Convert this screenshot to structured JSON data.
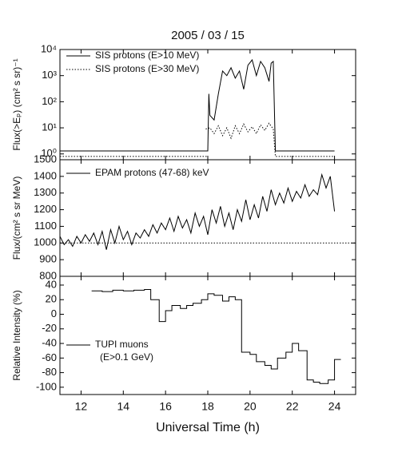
{
  "chart_data": [
    {
      "type": "line",
      "title": "2005 / 03 / 15",
      "ylabel": "Flux(>Eₚ) (cm² s sr)⁻¹",
      "log_scale": true,
      "xlim": [
        11,
        25
      ],
      "xticks": [
        12,
        14,
        16,
        18,
        20,
        22,
        24
      ],
      "ylim": [
        0.6,
        10000
      ],
      "yticks": [
        {
          "value": 1,
          "label": "10⁰"
        },
        {
          "value": 10,
          "label": "10¹"
        },
        {
          "value": 100,
          "label": "10²"
        },
        {
          "value": 1000,
          "label": "10³"
        },
        {
          "value": 10000,
          "label": "10⁴"
        }
      ],
      "series": [
        {
          "name": "SIS protons (E>10 MeV)",
          "color": "#000000",
          "dash": "solid",
          "x": [
            11,
            18,
            18.05,
            18.1,
            18.3,
            18.5,
            18.7,
            18.9,
            19.1,
            19.3,
            19.5,
            19.7,
            19.9,
            20.1,
            20.3,
            20.5,
            20.7,
            20.9,
            21.0,
            21.1,
            21.2,
            24
          ],
          "values": [
            1.3,
            1.3,
            200,
            30,
            20,
            200,
            1500,
            1000,
            2000,
            800,
            1500,
            300,
            2500,
            4000,
            1000,
            3500,
            2000,
            600,
            3000,
            3500,
            1.3,
            1.3
          ]
        },
        {
          "name": "SIS protons (E>30 MeV)",
          "color": "#000000",
          "dash": "dotted",
          "x": [
            11,
            18,
            17.95,
            17.9,
            18.1,
            18.3,
            18.5,
            18.7,
            18.9,
            19.1,
            19.3,
            19.5,
            19.7,
            19.9,
            20.1,
            20.3,
            20.5,
            20.7,
            20.9,
            21.1,
            21.2,
            24
          ],
          "values": [
            0.8,
            0.8,
            null,
            9,
            10,
            6,
            12,
            5,
            10,
            4,
            12,
            6,
            14,
            7,
            11,
            6,
            13,
            8,
            15,
            9,
            0.8,
            0.8
          ]
        }
      ]
    },
    {
      "type": "line",
      "ylabel": "Flux/(cm² s sr MeV)",
      "xlim": [
        11,
        25
      ],
      "xticks": [
        12,
        14,
        16,
        18,
        20,
        22,
        24
      ],
      "ylim": [
        800,
        1500
      ],
      "yticks": [
        800,
        900,
        1000,
        1100,
        1200,
        1300,
        1400,
        1500
      ],
      "reference": 1000,
      "series": [
        {
          "name": "EPAM protons (47-68) keV",
          "color": "#000000",
          "dash": "solid",
          "x": [
            11.0,
            11.2,
            11.4,
            11.6,
            11.8,
            12.0,
            12.2,
            12.4,
            12.6,
            12.8,
            13.0,
            13.2,
            13.4,
            13.6,
            13.8,
            14.0,
            14.2,
            14.4,
            14.6,
            14.8,
            15.0,
            15.2,
            15.4,
            15.6,
            15.8,
            16.0,
            16.2,
            16.4,
            16.6,
            16.8,
            17.0,
            17.2,
            17.4,
            17.6,
            17.8,
            18.0,
            18.2,
            18.4,
            18.6,
            18.8,
            19.0,
            19.2,
            19.4,
            19.6,
            19.8,
            20.0,
            20.2,
            20.4,
            20.6,
            20.8,
            21.0,
            21.2,
            21.4,
            21.6,
            21.8,
            22.0,
            22.2,
            22.4,
            22.6,
            22.8,
            23.0,
            23.2,
            23.4,
            23.6,
            23.8,
            24.0
          ],
          "values": [
            1040,
            990,
            1020,
            980,
            1040,
            1000,
            1050,
            1010,
            1060,
            990,
            1070,
            960,
            1080,
            1000,
            1100,
            1020,
            1070,
            990,
            1060,
            1030,
            1080,
            1040,
            1110,
            1060,
            1120,
            1080,
            1150,
            1070,
            1160,
            1090,
            1140,
            1060,
            1180,
            1100,
            1160,
            1050,
            1200,
            1120,
            1220,
            1100,
            1180,
            1080,
            1200,
            1130,
            1260,
            1140,
            1230,
            1150,
            1280,
            1190,
            1320,
            1230,
            1300,
            1240,
            1330,
            1250,
            1310,
            1270,
            1350,
            1280,
            1320,
            1290,
            1410,
            1330,
            1400,
            1190
          ]
        }
      ]
    },
    {
      "type": "step",
      "ylabel": "Relative Intensity (%)",
      "xlabel": "Universal Time (h)",
      "xlim": [
        11,
        25
      ],
      "xticks": [
        12,
        14,
        16,
        18,
        20,
        22,
        24
      ],
      "ylim": [
        -110,
        52
      ],
      "yticks": [
        -100,
        -80,
        -60,
        -40,
        -20,
        0,
        20,
        40
      ],
      "series": [
        {
          "name": "TUPI muons",
          "legend_note": "(E>0.1 GeV)",
          "color": "#000000",
          "dash": "solid",
          "x": [
            12.5,
            13,
            13.5,
            14,
            14.5,
            15,
            15.3,
            15.7,
            16,
            16.3,
            16.7,
            17,
            17.3,
            17.7,
            18,
            18.3,
            18.7,
            19,
            19.3,
            19.6,
            20,
            20.3,
            20.7,
            21,
            21.3,
            21.7,
            22,
            22.3,
            22.7,
            23,
            23.3,
            23.7,
            24,
            24.3
          ],
          "values": [
            32,
            31,
            33,
            32,
            33,
            34,
            20,
            -10,
            5,
            12,
            8,
            12,
            15,
            20,
            28,
            26,
            18,
            24,
            20,
            -52,
            -55,
            -65,
            -70,
            -75,
            -60,
            -52,
            -40,
            -50,
            -90,
            -93,
            -95,
            -90,
            -62,
            -62
          ]
        }
      ]
    }
  ]
}
